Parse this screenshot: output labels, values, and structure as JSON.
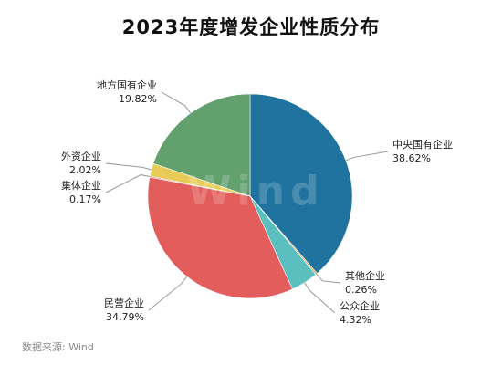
{
  "chart_data": {
    "type": "pie",
    "title": "2023年度增发企业性质分布",
    "source": "数据来源: Wind",
    "watermark": "Wind",
    "slices": [
      {
        "name": "中央国有企业",
        "value": 38.62,
        "label": "38.62%",
        "color": "#20739e"
      },
      {
        "name": "其他企业",
        "value": 0.26,
        "label": "0.26%",
        "color": "#e59a3c"
      },
      {
        "name": "公众企业",
        "value": 4.32,
        "label": "4.32%",
        "color": "#5bbfbf"
      },
      {
        "name": "民营企业",
        "value": 34.79,
        "label": "34.79%",
        "color": "#e35d5d"
      },
      {
        "name": "集体企业",
        "value": 0.17,
        "label": "0.17%",
        "color": "#b94f6e"
      },
      {
        "name": "外资企业",
        "value": 2.02,
        "label": "2.02%",
        "color": "#e8cc57"
      },
      {
        "name": "地方国有企业",
        "value": 19.82,
        "label": "19.82%",
        "color": "#62a06e"
      }
    ]
  }
}
